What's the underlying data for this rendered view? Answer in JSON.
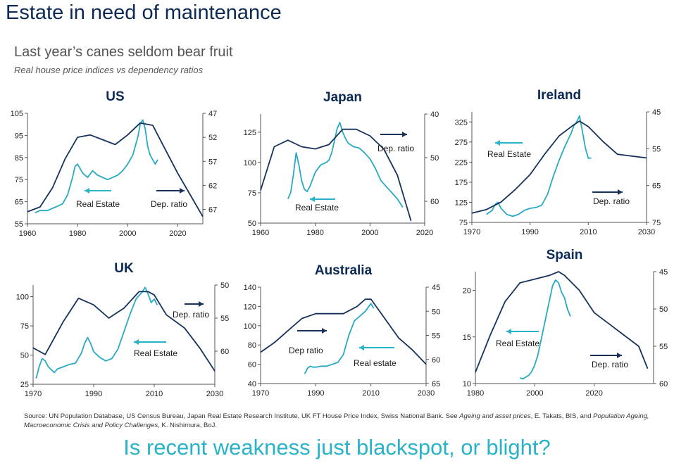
{
  "header": {
    "title": "Estate in need of maintenance",
    "subtitle": "Last year’s canes seldom bear fruit",
    "subsubtitle": "Real house price indices vs dependency ratios"
  },
  "source": {
    "part1": "Source: UN Population Database, US Census Bureau, Japan Real Estate Research Institute, UK FT House Price Index, Swiss National Bank. See ",
    "italic1": "Ageing and asset prices",
    "part2": ", E. Takats, BIS, and ",
    "italic2": "Population Ageing, Macroeconomic Crisis and Policy Challenges",
    "part3": ", K. Nishimura, BoJ."
  },
  "footer": "Is recent weakness just blackspot, or blight?",
  "colors": {
    "real_estate": "#29a9c3",
    "dep_ratio": "#16325c",
    "arrow_cyan": "#29b3c8",
    "arrow_navy": "#16325c"
  },
  "chart_data": [
    {
      "type": "line",
      "title": "US",
      "xlim": [
        1960,
        2030
      ],
      "xticks": [
        "1960",
        "1980",
        "2000",
        "2020"
      ],
      "ylim_left": [
        55,
        105
      ],
      "yticks_left": [
        "55",
        "65",
        "75",
        "85",
        "95",
        "105"
      ],
      "ylim_right": [
        47,
        70
      ],
      "right_inverted": true,
      "yticks_right": [
        "47",
        "52",
        "57",
        "62",
        "67"
      ],
      "series": [
        {
          "name": "Real Estate",
          "axis": "left",
          "x": [
            1963,
            1965,
            1968,
            1970,
            1972,
            1974,
            1976,
            1978,
            1979,
            1980,
            1982,
            1984,
            1986,
            1988,
            1990,
            1992,
            1994,
            1996,
            1998,
            2000,
            2002,
            2004,
            2005,
            2006,
            2007,
            2008,
            2009,
            2010,
            2011,
            2012
          ],
          "y": [
            60,
            61,
            61,
            62,
            63,
            64,
            68,
            76,
            81,
            82,
            78,
            76,
            79,
            77,
            76,
            75,
            76,
            77,
            79,
            82,
            86,
            94,
            100,
            102,
            98,
            90,
            86,
            84,
            82,
            84
          ]
        },
        {
          "name": "Dep. ratio",
          "axis": "right",
          "x": [
            1960,
            1965,
            1970,
            1975,
            1980,
            1985,
            1990,
            1995,
            2000,
            2005,
            2010,
            2015,
            2020,
            2025,
            2030
          ],
          "y": [
            67.5,
            66.5,
            62.5,
            56.5,
            52.0,
            51.5,
            52.5,
            53.5,
            51.5,
            49.0,
            49.5,
            54.5,
            59.5,
            64.0,
            68.5
          ]
        }
      ],
      "annotations": [
        "Real Estate",
        "Dep. ratio"
      ]
    },
    {
      "type": "line",
      "title": "Japan",
      "xlim": [
        1960,
        2020
      ],
      "xticks": [
        "1960",
        "1980",
        "2000",
        "2020"
      ],
      "ylim_left": [
        50,
        140
      ],
      "yticks_left": [
        "50",
        "75",
        "100",
        "125"
      ],
      "ylim_right": [
        40,
        65
      ],
      "right_inverted": true,
      "yticks_right": [
        "40",
        "50",
        "60"
      ],
      "series": [
        {
          "name": "Real Estate",
          "axis": "left",
          "x": [
            1970,
            1971,
            1972,
            1973,
            1974,
            1975,
            1976,
            1977,
            1978,
            1980,
            1982,
            1984,
            1985,
            1986,
            1987,
            1988,
            1989,
            1990,
            1991,
            1992,
            1994,
            1996,
            1998,
            2000,
            2002,
            2004,
            2006,
            2008,
            2010,
            2012
          ],
          "y": [
            70,
            75,
            90,
            108,
            98,
            85,
            78,
            76,
            80,
            92,
            98,
            100,
            102,
            108,
            118,
            128,
            133,
            125,
            120,
            116,
            113,
            112,
            108,
            103,
            95,
            85,
            80,
            75,
            70,
            63
          ]
        },
        {
          "name": "Dep. ratio",
          "axis": "right",
          "x": [
            1960,
            1965,
            1970,
            1975,
            1980,
            1985,
            1990,
            1995,
            2000,
            2005,
            2010,
            2015
          ],
          "y": [
            57.5,
            47.5,
            46.0,
            47.5,
            48.0,
            47.0,
            43.5,
            43.5,
            45.0,
            48.0,
            54.0,
            64.5
          ]
        }
      ],
      "annotations": [
        "Real Estate",
        "Dep. ratio"
      ]
    },
    {
      "type": "line",
      "title": "Ireland",
      "xlim": [
        1970,
        2030
      ],
      "xticks": [
        "1970",
        "1990",
        "2010",
        "2030"
      ],
      "ylim_left": [
        75,
        350
      ],
      "yticks_left": [
        "75",
        "125",
        "175",
        "225",
        "275",
        "325"
      ],
      "ylim_right": [
        45,
        75
      ],
      "right_inverted": true,
      "yticks_right": [
        "45",
        "55",
        "65",
        "75"
      ],
      "series": [
        {
          "name": "Real Estate",
          "axis": "left",
          "x": [
            1975,
            1977,
            1978,
            1979,
            1980,
            1982,
            1984,
            1986,
            1988,
            1990,
            1992,
            1994,
            1996,
            1998,
            2000,
            2002,
            2004,
            2005,
            2006,
            2007,
            2008,
            2009,
            2010,
            2011
          ],
          "y": [
            95,
            105,
            120,
            125,
            110,
            95,
            90,
            95,
            105,
            110,
            112,
            118,
            145,
            190,
            230,
            265,
            295,
            315,
            325,
            340,
            300,
            260,
            235,
            235
          ]
        },
        {
          "name": "Dep. ratio",
          "axis": "right",
          "x": [
            1970,
            1975,
            1980,
            1985,
            1990,
            1995,
            2000,
            2005,
            2007,
            2010,
            2015,
            2020,
            2025,
            2030
          ],
          "y": [
            72.5,
            71.5,
            69.5,
            66.0,
            62.0,
            56.5,
            51.5,
            48.5,
            47.5,
            49.0,
            53.0,
            56.5,
            57.0,
            57.5
          ]
        }
      ],
      "annotations": [
        "Real Estate",
        "Dep. ratio"
      ]
    },
    {
      "type": "line",
      "title": "UK",
      "xlim": [
        1970,
        2030
      ],
      "xticks": [
        "1970",
        "1990",
        "2010",
        "2030"
      ],
      "ylim_left": [
        25,
        110
      ],
      "yticks_left": [
        "25",
        "50",
        "75",
        "100"
      ],
      "ylim_right": [
        50,
        65
      ],
      "right_inverted": true,
      "yticks_right": [
        "50",
        "55",
        "60"
      ],
      "series": [
        {
          "name": "Real Estate",
          "axis": "left",
          "x": [
            1971,
            1972,
            1973,
            1974,
            1975,
            1977,
            1978,
            1980,
            1982,
            1984,
            1986,
            1987,
            1988,
            1989,
            1990,
            1992,
            1994,
            1996,
            1998,
            2000,
            2002,
            2004,
            2006,
            2007,
            2008,
            2009,
            2010,
            2011
          ],
          "y": [
            30,
            40,
            47,
            45,
            40,
            35,
            38,
            40,
            42,
            43,
            52,
            60,
            65,
            60,
            53,
            48,
            45,
            47,
            55,
            70,
            85,
            98,
            104,
            108,
            102,
            95,
            98,
            93
          ]
        },
        {
          "name": "Dep. ratio",
          "axis": "right",
          "x": [
            1970,
            1972,
            1974,
            1980,
            1985,
            1990,
            1995,
            2000,
            2005,
            2008,
            2010,
            2014,
            2020,
            2025,
            2030
          ],
          "y": [
            59.5,
            60.0,
            60.5,
            55.5,
            52.0,
            53.0,
            55.0,
            53.5,
            51.0,
            51.0,
            51.5,
            54.5,
            56.5,
            59.5,
            63.0
          ]
        }
      ],
      "annotations": [
        "Dep. ratio",
        "Real Estate"
      ]
    },
    {
      "type": "line",
      "title": "Australia",
      "xlim": [
        1970,
        2030
      ],
      "xticks": [
        "1970",
        "1990",
        "2010",
        "2030"
      ],
      "ylim_left": [
        40,
        140
      ],
      "yticks_left": [
        "40",
        "60",
        "80",
        "100",
        "120",
        "140"
      ],
      "ylim_right": [
        45,
        65
      ],
      "right_inverted": true,
      "yticks_right": [
        "45",
        "50",
        "55",
        "60",
        "65"
      ],
      "series": [
        {
          "name": "Real estate",
          "axis": "left",
          "x": [
            1986,
            1987,
            1988,
            1989,
            1990,
            1992,
            1994,
            1996,
            1998,
            2000,
            2002,
            2004,
            2006,
            2008,
            2010,
            2011
          ],
          "y": [
            50,
            56,
            58,
            57,
            57,
            58,
            58,
            60,
            62,
            70,
            90,
            105,
            110,
            115,
            123,
            118
          ]
        },
        {
          "name": "Dep ratio",
          "axis": "right",
          "x": [
            1970,
            1975,
            1980,
            1985,
            1990,
            1995,
            2000,
            2005,
            2008,
            2010,
            2015,
            2020,
            2025,
            2030
          ],
          "y": [
            58.5,
            56.5,
            54.0,
            51.5,
            50.5,
            50.5,
            50.5,
            49.0,
            47.5,
            47.5,
            51.5,
            55.5,
            58.0,
            61.0
          ]
        }
      ],
      "annotations": [
        "Dep ratio",
        "Real estate"
      ]
    },
    {
      "type": "line",
      "title": "Spain",
      "xlim": [
        1980,
        2040
      ],
      "xticks": [
        "1980",
        "2000",
        "2020"
      ],
      "ylim_left": [
        10,
        22
      ],
      "yticks_left": [
        "10",
        "15",
        "20"
      ],
      "ylim_right": [
        45,
        60
      ],
      "right_inverted": true,
      "yticks_right": [
        "45",
        "50",
        "55",
        "60"
      ],
      "series": [
        {
          "name": "Real Estate",
          "axis": "left",
          "x": [
            1995,
            1996,
            1997,
            1998,
            1999,
            2000,
            2001,
            2002,
            2003,
            2004,
            2005,
            2006,
            2007,
            2008,
            2009,
            2010,
            2011,
            2012
          ],
          "y": [
            10.6,
            10.5,
            10.7,
            10.9,
            11.3,
            12,
            13,
            14.5,
            16,
            17.5,
            19,
            20.5,
            21.1,
            20.8,
            19.8,
            19.2,
            18,
            17.2
          ]
        },
        {
          "name": "Dep. ratio",
          "axis": "right",
          "x": [
            1980,
            1985,
            1990,
            1995,
            2000,
            2005,
            2008,
            2010,
            2015,
            2020,
            2025,
            2030,
            2035,
            2038
          ],
          "y": [
            58.5,
            53.5,
            49.0,
            46.5,
            46.0,
            45.5,
            45.0,
            45.5,
            47.5,
            50.5,
            52.0,
            53.5,
            55.0,
            58.0
          ]
        }
      ],
      "annotations": [
        "Real Estate",
        "Dep. ratio"
      ]
    }
  ]
}
